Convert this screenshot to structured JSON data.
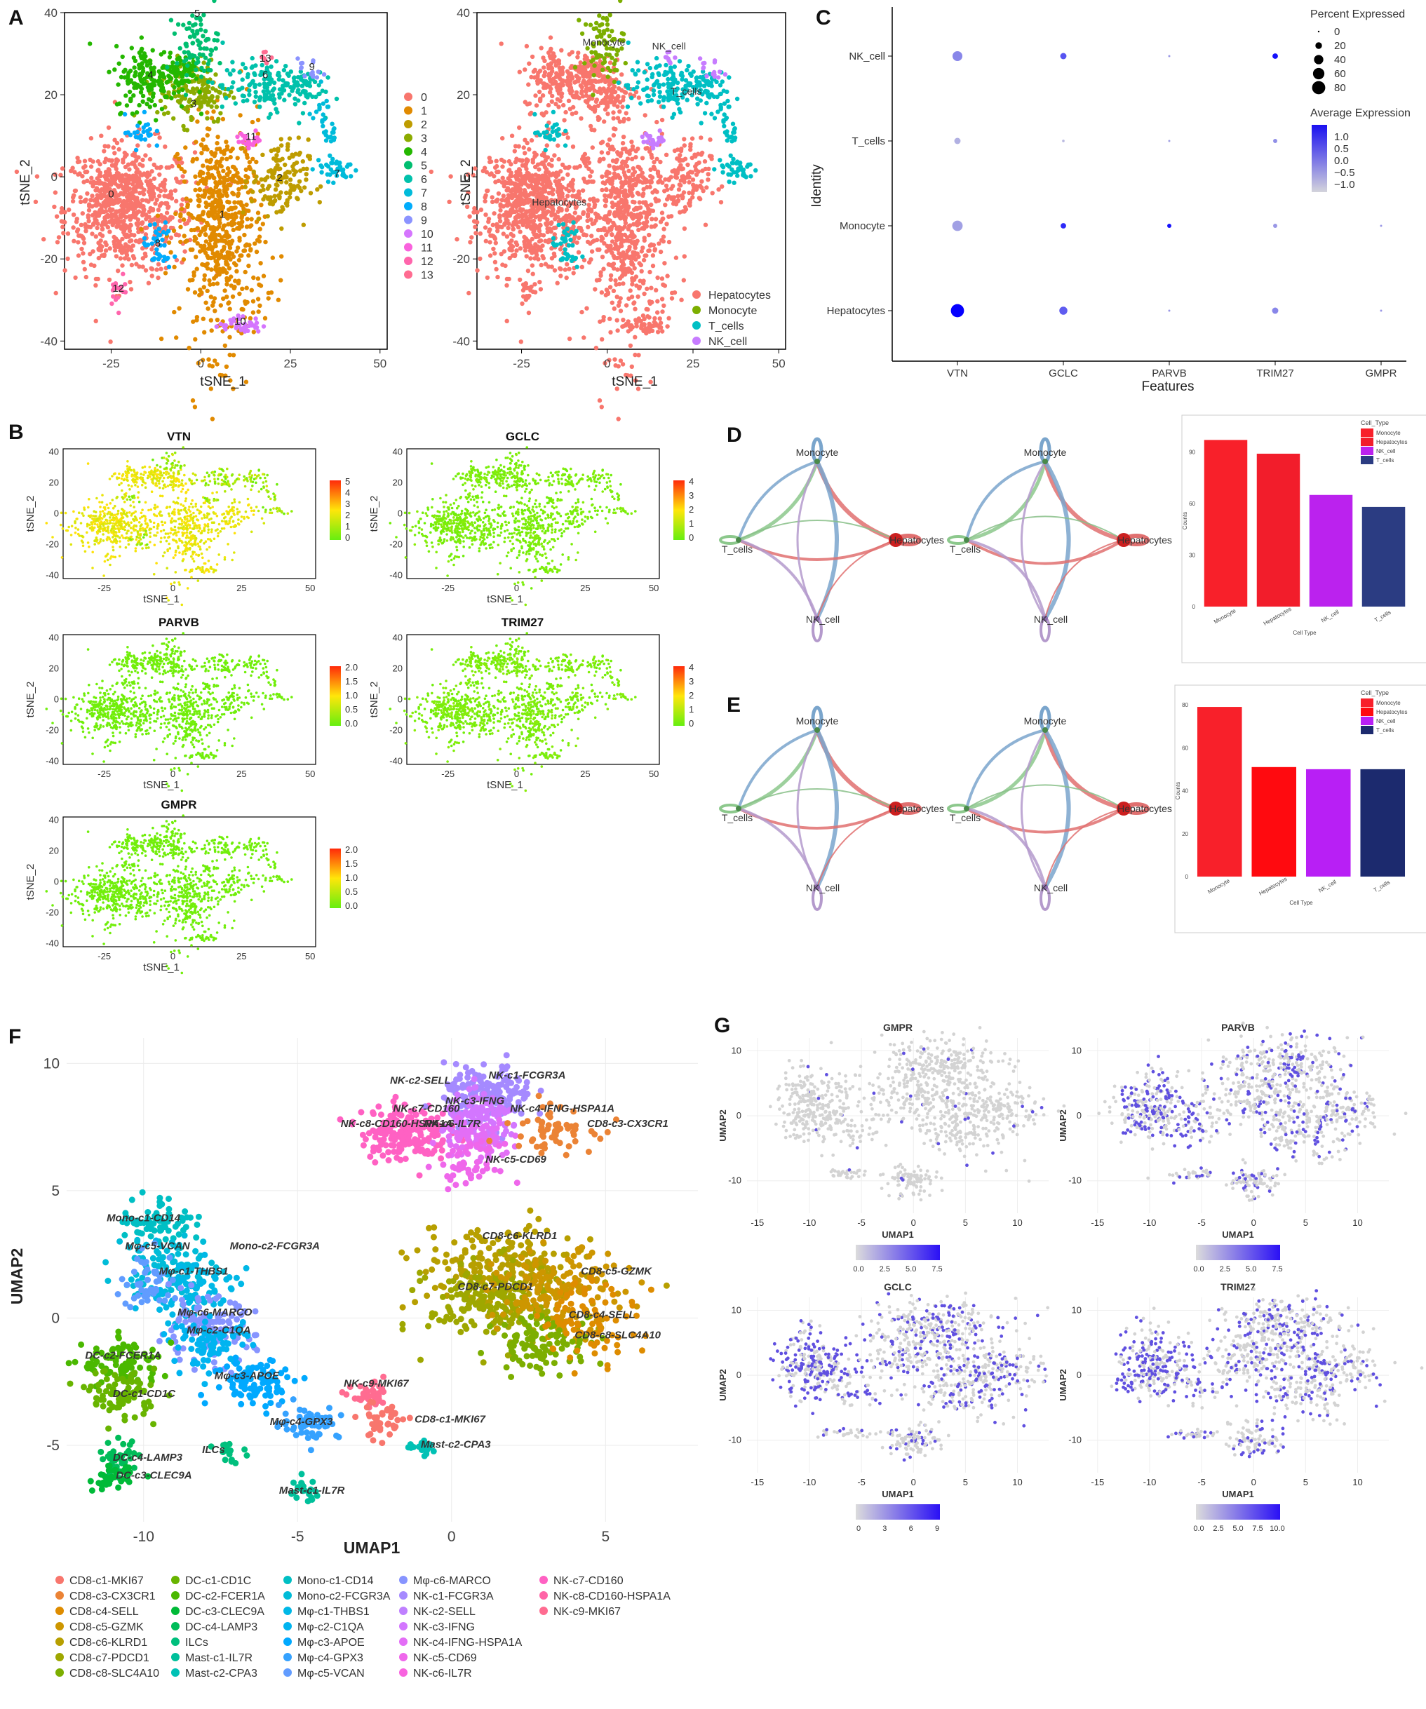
{
  "panels": {
    "A": "A",
    "B": "B",
    "C": "C",
    "D": "D",
    "E": "E",
    "F": "F",
    "G": "G"
  },
  "panel_a": {
    "xlabel": "tSNE_1",
    "ylabel": "tSNE_2",
    "x_ticks": [
      "-25",
      "0",
      "25",
      "50"
    ],
    "y_ticks": [
      "40",
      "20",
      "0",
      "-20",
      "-40"
    ],
    "clusters": [
      "0",
      "1",
      "2",
      "3",
      "4",
      "5",
      "6",
      "7",
      "8",
      "9",
      "10",
      "11",
      "12",
      "13"
    ],
    "cluster_colors": [
      "#F8766D",
      "#E18A00",
      "#BE9C00",
      "#8CAB00",
      "#24B700",
      "#00BE70",
      "#00C1AB",
      "#00BBDA",
      "#00ACFC",
      "#8B93FF",
      "#D575FE",
      "#F962DD",
      "#FF65AC",
      "#FF6C91"
    ],
    "celltypes": [
      "Hepatocytes",
      "Monocyte",
      "T_cells",
      "NK_cell"
    ],
    "celltype_colors": [
      "#F8766D",
      "#7CAE00",
      "#00BFC4",
      "#C77CFF"
    ]
  },
  "panel_b": {
    "genes": [
      "VTN",
      "GCLC",
      "PARVB",
      "TRIM27",
      "GMPR"
    ],
    "scales": [
      [
        "5",
        "4",
        "3",
        "2",
        "1",
        "0"
      ],
      [
        "4",
        "3",
        "2",
        "1",
        "0"
      ],
      [
        "2.0",
        "1.5",
        "1.0",
        "0.5",
        "0.0"
      ],
      [
        "4",
        "3",
        "2",
        "1",
        "0"
      ],
      [
        "2.0",
        "1.5",
        "1.0",
        "0.5",
        "0.0"
      ]
    ],
    "xlabel": "tSNE_1",
    "ylabel": "tSNE_2",
    "x_ticks": [
      "-25",
      "0",
      "25",
      "50"
    ],
    "y_ticks": [
      "40",
      "20",
      "0",
      "-20",
      "-40"
    ]
  },
  "chart_data": [
    {
      "type": "scatter",
      "panel": "A-left",
      "xlabel": "tSNE_1",
      "ylabel": "tSNE_2",
      "xlim": [
        -38,
        52
      ],
      "ylim": [
        -42,
        40
      ],
      "legend": [
        "0",
        "1",
        "2",
        "3",
        "4",
        "5",
        "6",
        "7",
        "8",
        "9",
        "10",
        "11",
        "12",
        "13"
      ]
    },
    {
      "type": "scatter",
      "panel": "A-right",
      "xlabel": "tSNE_1",
      "ylabel": "tSNE_2",
      "legend": [
        "Hepatocytes",
        "Monocyte",
        "T_cells",
        "NK_cell"
      ]
    },
    {
      "type": "scatter",
      "panel": "C",
      "xlabel": "Features",
      "ylabel": "Identity",
      "features": [
        "VTN",
        "GCLC",
        "PARVB",
        "TRIM27",
        "GMPR"
      ],
      "identities": [
        "NK_cell",
        "T_cells",
        "Monocyte",
        "Hepatocytes"
      ],
      "size_legend_title": "Percent Expressed",
      "size_legend": [
        "0",
        "20",
        "40",
        "60",
        "80"
      ],
      "color_legend_title": "Average Expression",
      "color_legend": [
        "1.0",
        "0.5",
        "0.0",
        "−0.5",
        "−1.0"
      ],
      "points": [
        {
          "feature": "VTN",
          "identity": "NK_cell",
          "pct": 45,
          "avg": -0.3
        },
        {
          "feature": "GCLC",
          "identity": "NK_cell",
          "pct": 18,
          "avg": 0.3
        },
        {
          "feature": "PARVB",
          "identity": "NK_cell",
          "pct": 2,
          "avg": -0.5
        },
        {
          "feature": "TRIM27",
          "identity": "NK_cell",
          "pct": 14,
          "avg": 1.1
        },
        {
          "feature": "VTN",
          "identity": "T_cells",
          "pct": 18,
          "avg": -0.8
        },
        {
          "feature": "GCLC",
          "identity": "T_cells",
          "pct": 3,
          "avg": -0.9
        },
        {
          "feature": "PARVB",
          "identity": "T_cells",
          "pct": 2,
          "avg": -0.6
        },
        {
          "feature": "TRIM27",
          "identity": "T_cells",
          "pct": 8,
          "avg": -0.4
        },
        {
          "feature": "VTN",
          "identity": "Monocyte",
          "pct": 50,
          "avg": -0.6
        },
        {
          "feature": "GCLC",
          "identity": "Monocyte",
          "pct": 14,
          "avg": 0.8
        },
        {
          "feature": "PARVB",
          "identity": "Monocyte",
          "pct": 8,
          "avg": 1.1
        },
        {
          "feature": "TRIM27",
          "identity": "Monocyte",
          "pct": 8,
          "avg": -0.5
        },
        {
          "feature": "GMPR",
          "identity": "Monocyte",
          "pct": 2,
          "avg": -0.5
        },
        {
          "feature": "VTN",
          "identity": "Hepatocytes",
          "pct": 80,
          "avg": 1.3
        },
        {
          "feature": "GCLC",
          "identity": "Hepatocytes",
          "pct": 30,
          "avg": 0.2
        },
        {
          "feature": "PARVB",
          "identity": "Hepatocytes",
          "pct": 2,
          "avg": -0.5
        },
        {
          "feature": "TRIM27",
          "identity": "Hepatocytes",
          "pct": 18,
          "avg": -0.3
        },
        {
          "feature": "GMPR",
          "identity": "Hepatocytes",
          "pct": 2,
          "avg": -0.5
        }
      ]
    },
    {
      "type": "bar",
      "panel": "D",
      "categories": [
        "Monocyte",
        "Hepatocytes",
        "NK_cell",
        "T_cells"
      ],
      "values": [
        97,
        89,
        65,
        58
      ],
      "ylim": [
        0,
        100
      ],
      "y_ticks": [
        "0",
        "30",
        "60",
        "90"
      ],
      "xlabel": "Cell Type",
      "ylabel": "Counts",
      "legend_title": "Cell_Type",
      "legend": [
        "Monocyte",
        "Hepatocytes",
        "NK_cell",
        "T_cells"
      ],
      "colors": [
        "#F8202A",
        "#F21D2B",
        "#BB22EE",
        "#2B3C82"
      ]
    },
    {
      "type": "bar",
      "panel": "E",
      "categories": [
        "Monocyte",
        "Hepatocytes",
        "NK_cell",
        "T_cells"
      ],
      "values": [
        79,
        51,
        50,
        50
      ],
      "ylim": [
        0,
        80
      ],
      "y_ticks": [
        "0",
        "20",
        "40",
        "60",
        "80"
      ],
      "xlabel": "Cell Type",
      "ylabel": "Counts",
      "legend_title": "Cell_Type",
      "legend": [
        "Monocyte",
        "Hepatocytes",
        "NK_cell",
        "T_cells"
      ],
      "colors": [
        "#F8202A",
        "#FF0A0F",
        "#B81FF5",
        "#1C2A6E"
      ]
    },
    {
      "type": "scatter",
      "panel": "F",
      "xlabel": "UMAP1",
      "ylabel": "UMAP2",
      "x_ticks": [
        "-10",
        "-5",
        "0",
        "5"
      ],
      "y_ticks": [
        "10",
        "5",
        "0",
        "-5"
      ]
    },
    {
      "type": "scatter",
      "panel": "G",
      "genes": [
        "GMPR",
        "PARVB",
        "GCLC",
        "TRIM27"
      ],
      "xlabel": "UMAP1",
      "ylabel": "UMAP2",
      "x_ticks": [
        "-15",
        "-10",
        "-5",
        "0",
        "5",
        "10"
      ],
      "y_ticks": [
        "10",
        "0",
        "-10"
      ],
      "scales": [
        [
          "0.0",
          "2.5",
          "5.0",
          "7.5"
        ],
        [
          "0.0",
          "2.5",
          "5.0",
          "7.5"
        ],
        [
          "0",
          "3",
          "6",
          "9"
        ],
        [
          "0.0",
          "2.5",
          "5.0",
          "7.5",
          "10.0"
        ]
      ]
    }
  ],
  "panel_c": {
    "features": [
      "VTN",
      "GCLC",
      "PARVB",
      "TRIM27",
      "GMPR"
    ],
    "identities": [
      "NK_cell",
      "T_cells",
      "Monocyte",
      "Hepatocytes"
    ],
    "xlabel": "Features",
    "ylabel": "Identity",
    "size_title": "Percent Expressed",
    "size_labels": [
      "0",
      "20",
      "40",
      "60",
      "80"
    ],
    "color_title": "Average Expression",
    "color_labels": [
      "1.0",
      "0.5",
      "0.0",
      "−0.5",
      "−1.0"
    ]
  },
  "panel_de": {
    "nodes": [
      "Monocyte",
      "T_cells",
      "Hepatocytes",
      "NK_cell"
    ],
    "legend_title": "Cell_Type",
    "legend": [
      "Monocyte",
      "Hepatocytes",
      "NK_cell",
      "T_cells"
    ],
    "xlabel": "Cell Type",
    "ylabel": "Counts"
  },
  "panel_f": {
    "xlabel": "UMAP1",
    "ylabel": "UMAP2",
    "x_ticks": [
      "-10",
      "-5",
      "0",
      "5"
    ],
    "y_ticks": [
      "10",
      "5",
      "0",
      "-5"
    ],
    "cluster_labels": [
      "NK-c2-SELL",
      "NK-c1-FCGR3A",
      "NK-c3-IFNG",
      "NK-c7-CD160",
      "NK-c4-IFNG-HSPA1A",
      "NK-c8-CD160-HSPA1A",
      "NK-c6-IL7R",
      "CD8-c3-CX3CR1",
      "NK-c5-CD69",
      "Mono-c1-CD14",
      "Mφ-c5-VCAN",
      "Mono-c2-FCGR3A",
      "CD8-c6-KLRD1",
      "Mφ-c1-THBS1",
      "CD8-c5-GZMK",
      "CD8-c7-PDCD1",
      "Mφ-c6-MARCO",
      "CD8-c4-SELL",
      "Mφ-c2-C1QA",
      "CD8-c8-SLC4A10",
      "DC-c2-FCER1A",
      "Mφ-c3-APOE",
      "NK-c9-MKI67",
      "DC-c1-CD1C",
      "CD8-c1-MKI67",
      "Mφ-c4-GPX3",
      "Mast-c2-CPA3",
      "ILCs",
      "DC-c4-LAMP3",
      "DC-c3-CLEC9A",
      "Mast-c1-IL7R"
    ],
    "legend": [
      "CD8-c1-MKI67",
      "CD8-c3-CX3CR1",
      "CD8-c4-SELL",
      "CD8-c5-GZMK",
      "CD8-c6-KLRD1",
      "CD8-c7-PDCD1",
      "CD8-c8-SLC4A10",
      "DC-c1-CD1C",
      "DC-c2-FCER1A",
      "DC-c3-CLEC9A",
      "DC-c4-LAMP3",
      "ILCs",
      "Mast-c1-IL7R",
      "Mast-c2-CPA3",
      "Mono-c1-CD14",
      "Mono-c2-FCGR3A",
      "Mφ-c1-THBS1",
      "Mφ-c2-C1QA",
      "Mφ-c3-APOE",
      "Mφ-c4-GPX3",
      "Mφ-c5-VCAN",
      "Mφ-c6-MARCO",
      "NK-c1-FCGR3A",
      "NK-c2-SELL",
      "NK-c3-IFNG",
      "NK-c4-IFNG-HSPA1A",
      "NK-c5-CD69",
      "NK-c6-IL7R",
      "NK-c7-CD160",
      "NK-c8-CD160-HSPA1A",
      "NK-c9-MKI67"
    ],
    "legend_colors": [
      "#F8766D",
      "#EB8335",
      "#DE8C00",
      "#CD9600",
      "#B79F00",
      "#9EA700",
      "#7CAE00",
      "#68B400",
      "#4AB800",
      "#00BA38",
      "#00BC59",
      "#00BF7D",
      "#00C09B",
      "#00C1B5",
      "#00BFC4",
      "#00BCD8",
      "#00B8E7",
      "#00B4F0",
      "#00A9FF",
      "#35A2FF",
      "#619CFF",
      "#8794FF",
      "#A58AFF",
      "#BF80FF",
      "#D376FF",
      "#E36EF6",
      "#EF67EB",
      "#F863DF",
      "#FF61C3",
      "#FF64A7",
      "#FF6C91"
    ]
  },
  "panel_g": {
    "genes": [
      "GMPR",
      "PARVB",
      "GCLC",
      "TRIM27"
    ],
    "xlabel": "UMAP1",
    "ylabel": "UMAP2"
  }
}
